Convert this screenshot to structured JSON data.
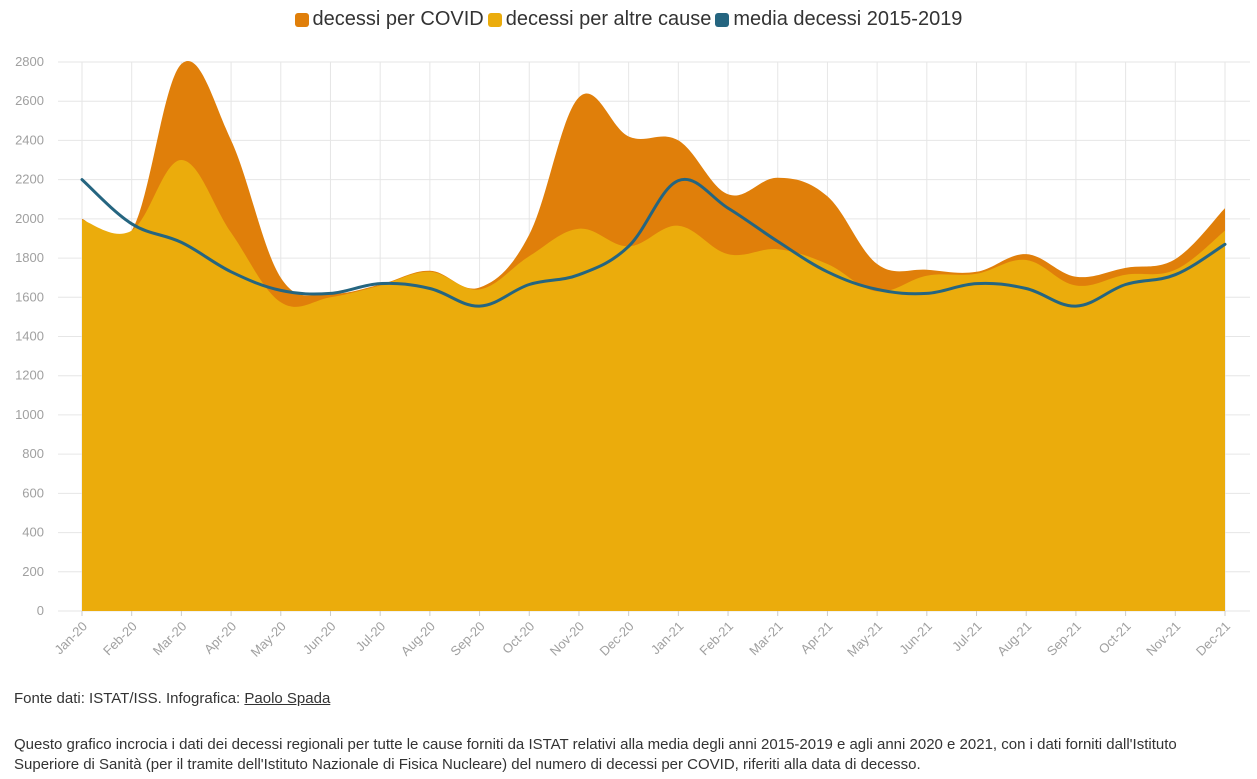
{
  "legend": {
    "items": [
      {
        "label": "decessi per COVID",
        "color": "#e07f0a"
      },
      {
        "label": "decessi per altre cause",
        "color": "#ebac0c"
      },
      {
        "label": "media decessi 2015-2019",
        "color": "#256580"
      }
    ]
  },
  "chart_data": {
    "type": "area",
    "categories": [
      "Jan-20",
      "Feb-20",
      "Mar-20",
      "Apr-20",
      "May-20",
      "Jun-20",
      "Jul-20",
      "Aug-20",
      "Sep-20",
      "Oct-20",
      "Nov-20",
      "Dec-20",
      "Jan-21",
      "Feb-21",
      "Mar-21",
      "Apr-21",
      "May-21",
      "Jun-21",
      "Jul-21",
      "Aug-21",
      "Sep-21",
      "Oct-21",
      "Nov-21",
      "Dec-21"
    ],
    "ylim": [
      0,
      2800
    ],
    "yticks": [
      0,
      200,
      400,
      600,
      800,
      1000,
      1200,
      1400,
      1600,
      1800,
      2000,
      2200,
      2400,
      2600,
      2800
    ],
    "grid": true,
    "legend_position": "top",
    "stacked": true,
    "series": [
      {
        "name": "decessi per altre cause",
        "kind": "area",
        "color": "#ebac0c",
        "values": [
          1995,
          1940,
          2300,
          1930,
          1575,
          1600,
          1660,
          1730,
          1640,
          1810,
          1950,
          1860,
          1965,
          1820,
          1845,
          1770,
          1630,
          1710,
          1720,
          1790,
          1660,
          1715,
          1740,
          1940
        ]
      },
      {
        "name": "decessi per COVID",
        "kind": "area",
        "color": "#e07f0a",
        "values": [
          5,
          0,
          490,
          470,
          125,
          20,
          5,
          5,
          10,
          110,
          670,
          560,
          435,
          305,
          365,
          345,
          140,
          30,
          10,
          30,
          45,
          35,
          55,
          115
        ]
      },
      {
        "name": "media decessi 2015-2019",
        "kind": "line",
        "color": "#256580",
        "values": [
          2200,
          1975,
          1880,
          1730,
          1635,
          1620,
          1670,
          1645,
          1555,
          1665,
          1715,
          1860,
          2195,
          2055,
          1885,
          1730,
          1640,
          1620,
          1670,
          1645,
          1555,
          1665,
          1715,
          1870
        ]
      }
    ]
  },
  "source": {
    "prefix": "Fonte dati: ISTAT/ISS. Infografica: ",
    "author": "Paolo Spada"
  },
  "description": "Questo grafico incrocia i dati dei decessi regionali per tutte le cause forniti da ISTAT relativi alla media degli anni 2015-2019 e agli anni 2020 e 2021, con i dati forniti dall'Istituto Superiore di Sanità (per il tramite dell'Istituto Nazionale di Fisica Nucleare) del numero di decessi per COVID, riferiti alla data di decesso."
}
